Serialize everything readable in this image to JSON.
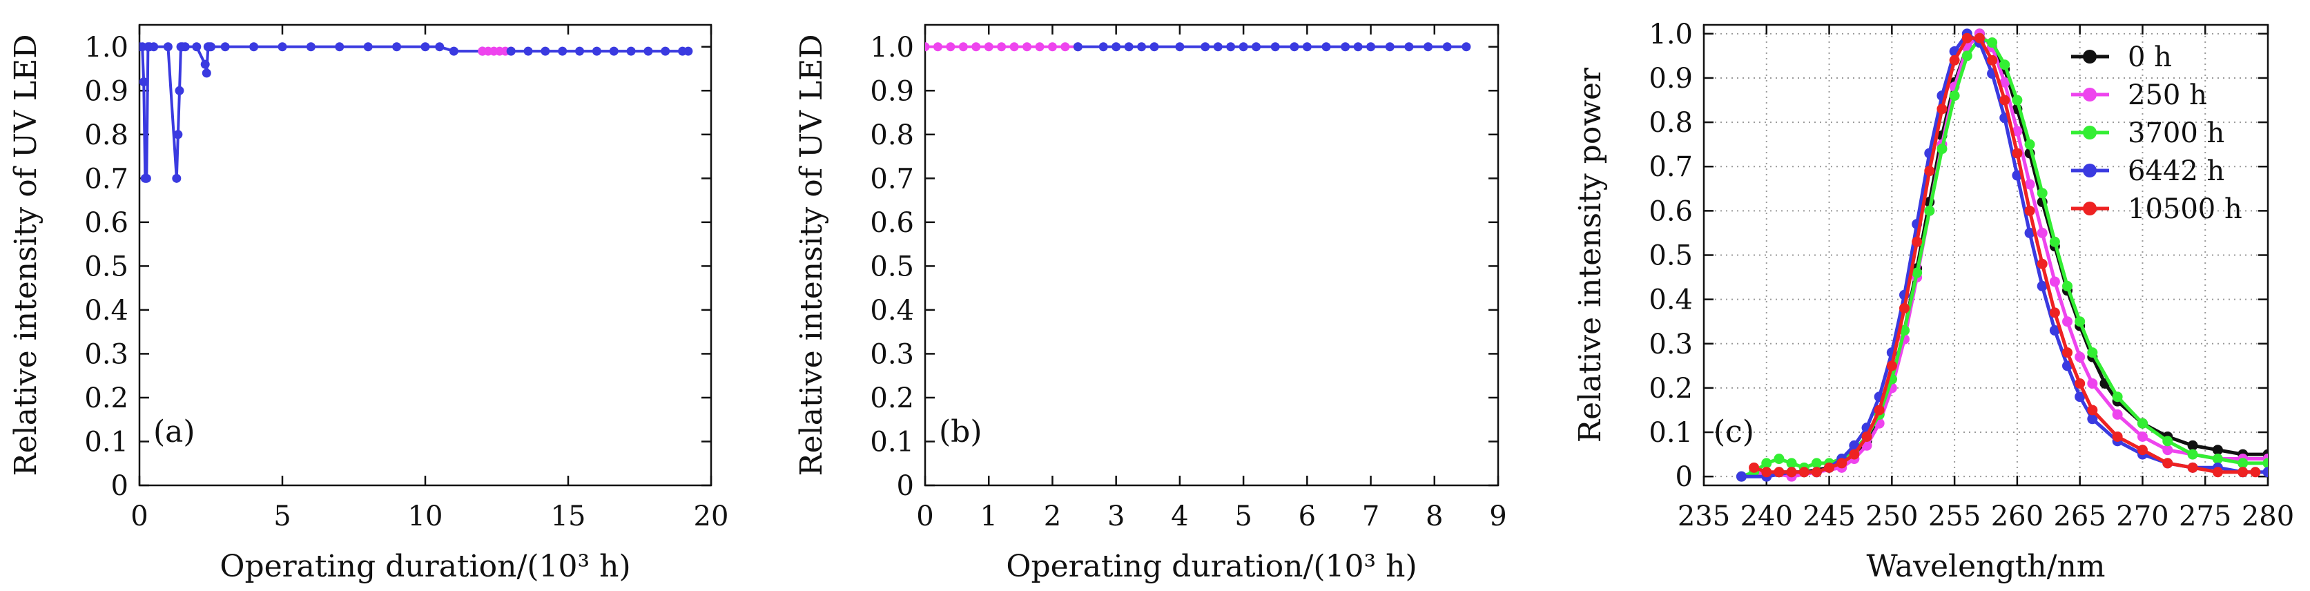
{
  "chart_data": [
    {
      "type": "line",
      "panel_label": "(a)",
      "xlabel": "Operating duration/(10³ h)",
      "ylabel": "Relative intensity of UV LED",
      "xlim": [
        0,
        20
      ],
      "ylim": [
        0,
        1.05
      ],
      "xticks": [
        0,
        5,
        10,
        15,
        20
      ],
      "yticks": [
        0,
        0.1,
        0.2,
        0.3,
        0.4,
        0.5,
        0.6,
        0.7,
        0.8,
        0.9,
        1.0
      ],
      "ytick_labels": [
        "0",
        "0.1",
        "0.2",
        "0.3",
        "0.4",
        "0.5",
        "0.6",
        "0.7",
        "0.8",
        "0.9",
        "1.0"
      ],
      "grid": false,
      "series": [
        {
          "color": "#3a3ae0",
          "x": [
            0,
            0.1,
            0.15,
            0.2,
            0.25,
            0.3,
            0.35,
            0.5,
            1.0,
            1.3,
            1.35,
            1.4,
            1.45,
            1.5,
            1.6,
            2.0,
            2.3,
            2.35,
            2.4,
            2.45,
            2.5,
            3,
            4,
            5,
            6,
            7,
            8,
            9,
            10,
            10.5,
            11,
            12
          ],
          "y": [
            1.0,
            1.0,
            0.92,
            0.7,
            0.7,
            1.0,
            1.0,
            1.0,
            1.0,
            0.7,
            0.8,
            0.9,
            1.0,
            1.0,
            1.0,
            1.0,
            0.96,
            0.94,
            1.0,
            1.0,
            1.0,
            1.0,
            1.0,
            1.0,
            1.0,
            1.0,
            1.0,
            1.0,
            1.0,
            1.0,
            0.99,
            0.99
          ]
        },
        {
          "color": "#ee44ee",
          "x": [
            12.0,
            12.2,
            12.4,
            12.6,
            12.8,
            13.0
          ],
          "y": [
            0.99,
            0.99,
            0.99,
            0.99,
            0.99,
            0.99
          ]
        },
        {
          "color": "#3a3ae0",
          "x": [
            13.0,
            13.6,
            14.2,
            14.8,
            15.4,
            16.0,
            16.6,
            17.2,
            17.8,
            18.4,
            19.0,
            19.2
          ],
          "y": [
            0.99,
            0.99,
            0.99,
            0.99,
            0.99,
            0.99,
            0.99,
            0.99,
            0.99,
            0.99,
            0.99,
            0.99
          ]
        }
      ]
    },
    {
      "type": "line",
      "panel_label": "(b)",
      "xlabel": "Operating duration/(10³ h)",
      "ylabel": "Relative intensity of UV LED",
      "xlim": [
        0,
        9
      ],
      "ylim": [
        0,
        1.05
      ],
      "xticks": [
        0,
        1,
        2,
        3,
        4,
        5,
        6,
        7,
        8,
        9
      ],
      "yticks": [
        0,
        0.1,
        0.2,
        0.3,
        0.4,
        0.5,
        0.6,
        0.7,
        0.8,
        0.9,
        1.0
      ],
      "ytick_labels": [
        "0",
        "0.1",
        "0.2",
        "0.3",
        "0.4",
        "0.5",
        "0.6",
        "0.7",
        "0.8",
        "0.9",
        "1.0"
      ],
      "grid": false,
      "series": [
        {
          "color": "#ee44ee",
          "x": [
            0,
            0.2,
            0.4,
            0.6,
            0.8,
            1.0,
            1.2,
            1.4,
            1.6,
            1.8,
            2.0,
            2.2,
            2.4
          ],
          "y": [
            1.0,
            1.0,
            1.0,
            1.0,
            1.0,
            1.0,
            1.0,
            1.0,
            1.0,
            1.0,
            1.0,
            1.0,
            1.0
          ]
        },
        {
          "color": "#3a3ae0",
          "x": [
            2.4,
            2.8,
            3.0,
            3.2,
            3.4,
            3.6,
            4.0,
            4.4,
            4.6,
            4.8,
            5.0,
            5.2,
            5.5,
            5.8,
            6.0,
            6.3,
            6.6,
            6.8,
            7.0,
            7.3,
            7.6,
            7.9,
            8.2,
            8.5
          ],
          "y": [
            1.0,
            1.0,
            1.0,
            1.0,
            1.0,
            1.0,
            1.0,
            1.0,
            1.0,
            1.0,
            1.0,
            1.0,
            1.0,
            1.0,
            1.0,
            1.0,
            1.0,
            1.0,
            1.0,
            1.0,
            1.0,
            1.0,
            1.0,
            1.0
          ]
        }
      ]
    },
    {
      "type": "line",
      "panel_label": "(c)",
      "xlabel": "Wavelength/nm",
      "ylabel": "Relative intensity power",
      "xlim": [
        235,
        280
      ],
      "ylim": [
        -0.02,
        1.02
      ],
      "xticks": [
        235,
        240,
        245,
        250,
        255,
        260,
        265,
        270,
        275,
        280
      ],
      "yticks": [
        0,
        0.1,
        0.2,
        0.3,
        0.4,
        0.5,
        0.6,
        0.7,
        0.8,
        0.9,
        1.0
      ],
      "ytick_labels": [
        "0",
        "0.1",
        "0.2",
        "0.3",
        "0.4",
        "0.5",
        "0.6",
        "0.7",
        "0.8",
        "0.9",
        "1.0"
      ],
      "grid": true,
      "legend_position": "top-right",
      "series": [
        {
          "name": "0 h",
          "color": "#111111",
          "x": [
            241,
            243,
            245,
            246,
            247,
            248,
            249,
            250,
            251,
            252,
            253,
            254,
            255,
            256,
            257,
            258,
            259,
            260,
            261,
            262,
            263,
            264,
            265,
            266,
            267,
            268,
            270,
            272,
            274,
            276,
            278,
            280
          ],
          "y": [
            0.01,
            0.01,
            0.02,
            0.03,
            0.05,
            0.08,
            0.14,
            0.22,
            0.33,
            0.47,
            0.62,
            0.77,
            0.89,
            0.97,
            1.0,
            0.97,
            0.92,
            0.83,
            0.73,
            0.62,
            0.52,
            0.42,
            0.34,
            0.27,
            0.21,
            0.17,
            0.12,
            0.09,
            0.07,
            0.06,
            0.05,
            0.05
          ]
        },
        {
          "name": "250 h",
          "color": "#ee44ee",
          "x": [
            238,
            240,
            242,
            244,
            246,
            247,
            248,
            249,
            250,
            251,
            252,
            253,
            254,
            255,
            256,
            257,
            258,
            259,
            260,
            261,
            262,
            263,
            264,
            265,
            266,
            268,
            270,
            272,
            274,
            276,
            278,
            280
          ],
          "y": [
            0.0,
            0.01,
            0.0,
            0.01,
            0.02,
            0.04,
            0.07,
            0.12,
            0.2,
            0.31,
            0.45,
            0.6,
            0.75,
            0.88,
            0.97,
            1.0,
            0.97,
            0.89,
            0.78,
            0.66,
            0.55,
            0.44,
            0.35,
            0.27,
            0.21,
            0.14,
            0.09,
            0.06,
            0.05,
            0.04,
            0.04,
            0.04
          ]
        },
        {
          "name": "3700 h",
          "color": "#33ee33",
          "x": [
            238,
            239,
            240,
            241,
            242,
            243,
            244,
            245,
            246,
            247,
            248,
            249,
            250,
            251,
            252,
            253,
            254,
            255,
            256,
            257,
            258,
            259,
            260,
            261,
            262,
            263,
            264,
            265,
            266,
            268,
            270,
            272,
            274,
            276,
            278,
            280
          ],
          "y": [
            0.0,
            0.01,
            0.03,
            0.04,
            0.03,
            0.02,
            0.03,
            0.03,
            0.04,
            0.06,
            0.09,
            0.14,
            0.22,
            0.33,
            0.46,
            0.6,
            0.74,
            0.86,
            0.95,
            0.99,
            0.98,
            0.93,
            0.85,
            0.75,
            0.64,
            0.53,
            0.43,
            0.35,
            0.28,
            0.18,
            0.12,
            0.08,
            0.05,
            0.04,
            0.03,
            0.03
          ]
        },
        {
          "name": "6442 h",
          "color": "#3a3ae0",
          "x": [
            238,
            240,
            242,
            244,
            245,
            246,
            247,
            248,
            249,
            250,
            251,
            252,
            253,
            254,
            255,
            256,
            257,
            258,
            259,
            260,
            261,
            262,
            263,
            264,
            265,
            266,
            268,
            270,
            272,
            274,
            276,
            278,
            280
          ],
          "y": [
            0.0,
            0.0,
            0.01,
            0.01,
            0.02,
            0.04,
            0.07,
            0.11,
            0.18,
            0.28,
            0.41,
            0.57,
            0.73,
            0.86,
            0.96,
            1.0,
            0.98,
            0.91,
            0.81,
            0.68,
            0.55,
            0.43,
            0.33,
            0.25,
            0.18,
            0.13,
            0.08,
            0.05,
            0.03,
            0.02,
            0.02,
            0.01,
            0.01
          ]
        },
        {
          "name": "10500 h",
          "color": "#ee2222",
          "x": [
            239,
            240,
            241,
            242,
            243,
            244,
            245,
            246,
            247,
            248,
            249,
            250,
            251,
            252,
            253,
            254,
            255,
            256,
            257,
            258,
            259,
            260,
            261,
            262,
            263,
            264,
            265,
            266,
            268,
            270,
            272,
            274,
            276,
            278,
            279
          ],
          "y": [
            0.02,
            0.01,
            0.01,
            0.01,
            0.01,
            0.01,
            0.02,
            0.03,
            0.05,
            0.09,
            0.15,
            0.25,
            0.38,
            0.53,
            0.69,
            0.83,
            0.94,
            0.99,
            0.99,
            0.94,
            0.85,
            0.73,
            0.6,
            0.48,
            0.37,
            0.28,
            0.21,
            0.15,
            0.09,
            0.06,
            0.03,
            0.02,
            0.01,
            0.01,
            0.01
          ]
        }
      ]
    }
  ]
}
